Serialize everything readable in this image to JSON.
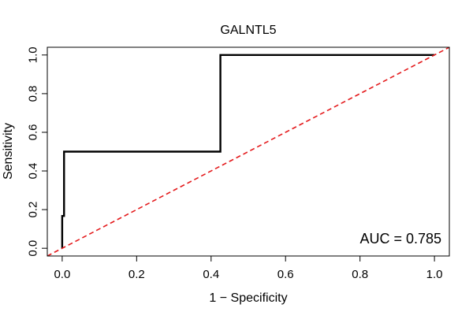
{
  "chart_data": {
    "type": "line",
    "title": "GALNTL5",
    "xlabel": "1 − Specificity",
    "ylabel": "Sensitivity",
    "xlim": [
      -0.04,
      1.04
    ],
    "ylim": [
      -0.04,
      1.04
    ],
    "x_ticks": [
      0.0,
      0.2,
      0.4,
      0.6,
      0.8,
      1.0
    ],
    "y_ticks": [
      0.0,
      0.2,
      0.4,
      0.6,
      0.8,
      1.0
    ],
    "x_tick_labels": [
      "0.0",
      "0.2",
      "0.4",
      "0.6",
      "0.8",
      "1.0"
    ],
    "y_tick_labels": [
      "0.0",
      "0.2",
      "0.4",
      "0.6",
      "0.8",
      "1.0"
    ],
    "grid": false,
    "annotation": "AUC = 0.785",
    "series": [
      {
        "color": "#000000",
        "style": "solid",
        "x": [
          0.0,
          0.0,
          0.005,
          0.005,
          0.005,
          0.005,
          0.005,
          0.425,
          0.425,
          0.425,
          0.425,
          0.425,
          1.0
        ],
        "y": [
          0.0,
          0.167,
          0.167,
          0.333,
          0.333,
          0.5,
          0.5,
          0.5,
          0.667,
          0.667,
          0.833,
          1.0,
          1.0
        ]
      },
      {
        "color": "#e41a1c",
        "style": "dashed",
        "x": [
          -0.04,
          1.04
        ],
        "y": [
          -0.04,
          1.04
        ]
      }
    ]
  }
}
